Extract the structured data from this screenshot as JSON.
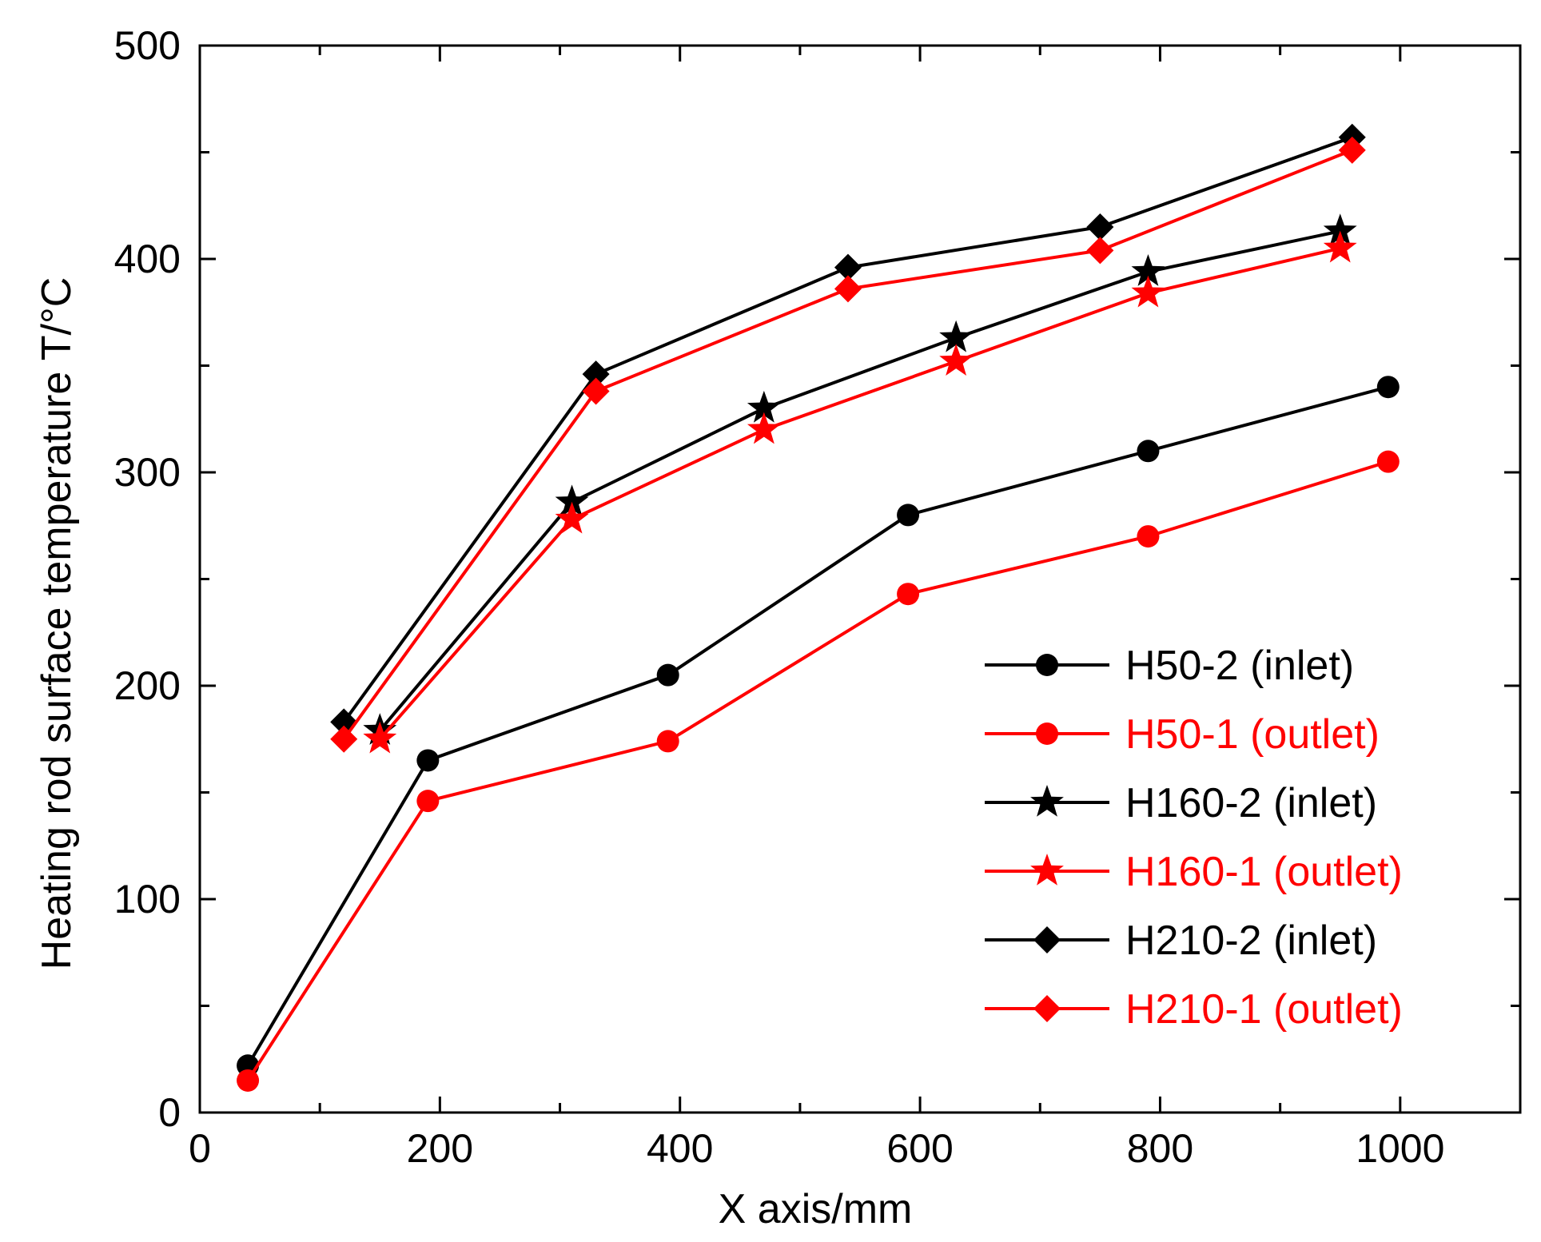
{
  "chart_data": {
    "type": "line",
    "title": "",
    "xlabel": "X axis/mm",
    "ylabel": "Heating rod surface temperature T/°C",
    "xlim": [
      0,
      1100
    ],
    "ylim": [
      0,
      500
    ],
    "x_ticks": [
      0,
      200,
      400,
      600,
      800,
      1000
    ],
    "y_ticks": [
      0,
      100,
      200,
      300,
      400,
      500
    ],
    "grid": false,
    "legend_position": "bottom-right",
    "series": [
      {
        "name": "H50-2 (inlet)",
        "color": "#000000",
        "marker": "circle",
        "x": [
          40,
          190,
          390,
          590,
          790,
          990
        ],
        "y": [
          22,
          165,
          205,
          280,
          310,
          340
        ]
      },
      {
        "name": "H50-1 (outlet)",
        "color": "#ff0000",
        "marker": "circle",
        "x": [
          40,
          190,
          390,
          590,
          790,
          990
        ],
        "y": [
          15,
          146,
          174,
          243,
          270,
          305
        ]
      },
      {
        "name": "H160-2 (inlet)",
        "color": "#000000",
        "marker": "star",
        "x": [
          150,
          310,
          470,
          630,
          790,
          950
        ],
        "y": [
          179,
          286,
          330,
          363,
          394,
          413
        ]
      },
      {
        "name": "H160-1 (outlet)",
        "color": "#ff0000",
        "marker": "star",
        "x": [
          150,
          310,
          470,
          630,
          790,
          950
        ],
        "y": [
          175,
          278,
          320,
          352,
          384,
          405
        ]
      },
      {
        "name": "H210-2 (inlet)",
        "color": "#000000",
        "marker": "diamond",
        "x": [
          120,
          330,
          540,
          750,
          960
        ],
        "y": [
          183,
          346,
          396,
          415,
          457
        ]
      },
      {
        "name": "H210-1 (outlet)",
        "color": "#ff0000",
        "marker": "diamond",
        "x": [
          120,
          330,
          540,
          750,
          960
        ],
        "y": [
          175,
          338,
          386,
          404,
          451
        ]
      }
    ]
  }
}
